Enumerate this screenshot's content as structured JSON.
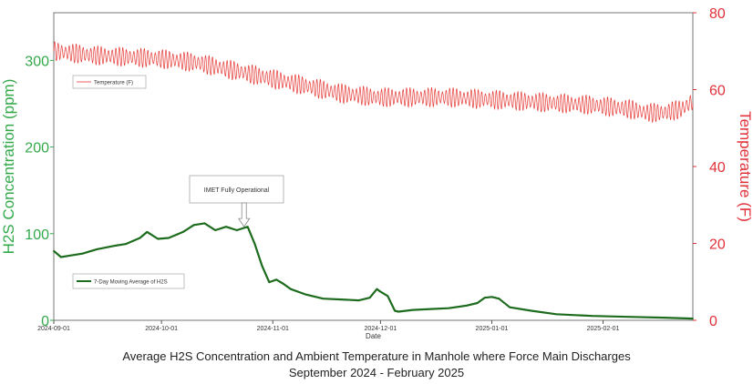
{
  "chart_data": {
    "type": "line",
    "title": "Average H2S Concentration and Ambient Temperature in Manhole where Force Main Discharges",
    "subtitle": "September 2024 - February 2025",
    "xlabel": "Date",
    "x_ticks": [
      "2024-09-01",
      "2024-10-01",
      "2024-11-01",
      "2024-12-01",
      "2025-01-01",
      "2025-02-01"
    ],
    "x_range_days": [
      0,
      178
    ],
    "x_tick_days": [
      0,
      30,
      61,
      91,
      122,
      153
    ],
    "ylabel_left": "H2S Concentration (ppm)",
    "ylim_left": [
      0,
      355
    ],
    "yticks_left": [
      0,
      100,
      200,
      300
    ],
    "ylabel_right": "Temperature (F)",
    "ylim_right": [
      0,
      80
    ],
    "yticks_right": [
      0,
      20,
      40,
      60,
      80
    ],
    "colors": {
      "h2s": "#1d6b1d",
      "temperature": "#e53935",
      "left_axis": "#33a94a",
      "right_axis": "#e0303a"
    },
    "series": [
      {
        "name": "7-Day Moving Average of H2S",
        "axis": "left",
        "day": [
          0,
          2,
          5,
          8,
          12,
          17,
          20,
          24,
          26,
          29,
          32,
          36,
          39,
          42,
          45,
          48,
          51,
          54,
          56,
          58,
          60,
          62,
          64,
          66,
          70,
          75,
          80,
          85,
          88,
          90,
          91,
          93,
          95,
          96,
          100,
          105,
          110,
          115,
          118,
          120,
          122,
          124,
          127,
          133,
          140,
          150,
          160,
          170,
          178
        ],
        "values": [
          80,
          73,
          75,
          77,
          82,
          86,
          88,
          95,
          102,
          94,
          95,
          102,
          110,
          112,
          104,
          108,
          104,
          108,
          88,
          63,
          44,
          47,
          42,
          36,
          30,
          25,
          24,
          23,
          26,
          36,
          33,
          28,
          11,
          10,
          12,
          13,
          14,
          17,
          20,
          26,
          27,
          25,
          15,
          11,
          7,
          5,
          4,
          3,
          2
        ]
      },
      {
        "name": "Temperature (F)",
        "axis": "right",
        "day": [
          0,
          10,
          20,
          30,
          40,
          50,
          60,
          70,
          80,
          90,
          100,
          110,
          120,
          130,
          140,
          150,
          160,
          165,
          170,
          175,
          178
        ],
        "values": [
          70,
          69,
          68.5,
          68,
          67,
          65,
          63,
          61,
          59,
          58,
          58,
          58,
          57.5,
          57,
          56.5,
          56,
          55,
          54,
          54,
          55,
          57
        ],
        "daily_swing": 4
      }
    ],
    "annotations": [
      {
        "text": "IMET Fully Operational",
        "target_day": 53,
        "target_value": 107
      }
    ],
    "legends": [
      {
        "label": "Temperature (F)",
        "placement": "upper-left"
      },
      {
        "label": "7-Day Moving Average of H2S",
        "placement": "lower-left"
      }
    ]
  }
}
